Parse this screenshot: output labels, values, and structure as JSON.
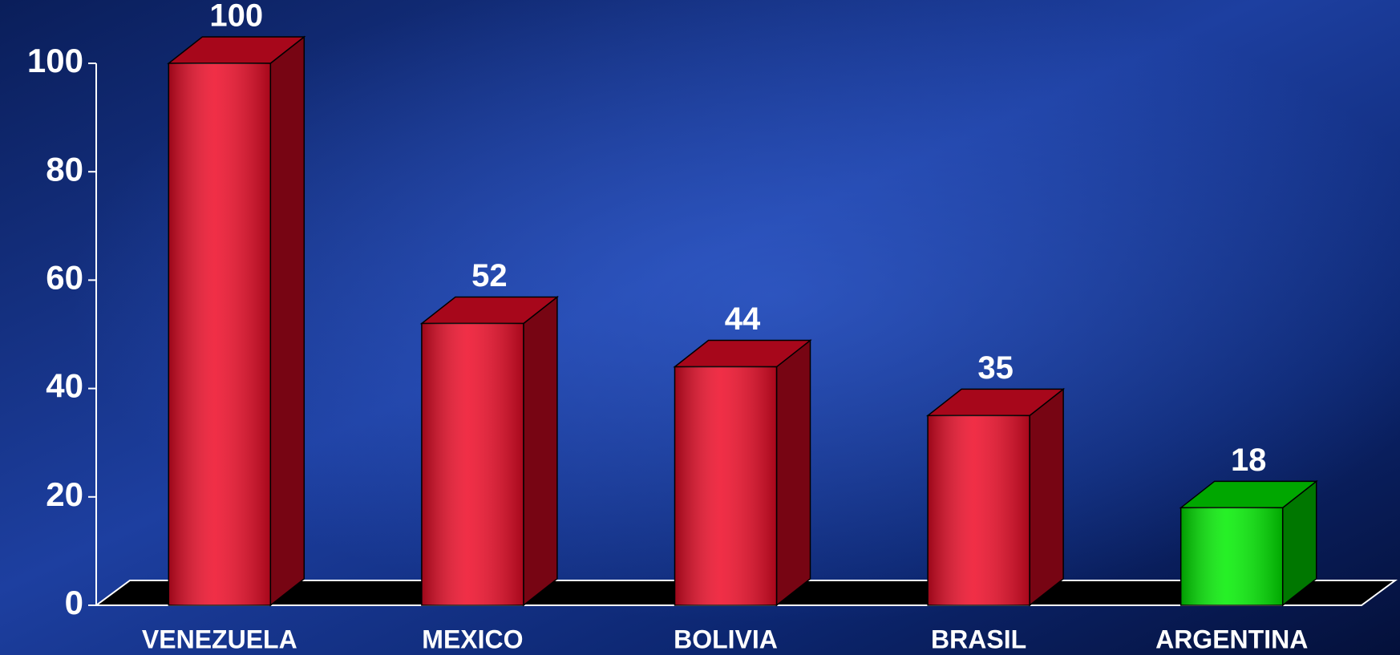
{
  "chart_data": {
    "type": "bar3d",
    "categories": [
      "VENEZUELA",
      "MEXICO",
      "BOLIVIA",
      "BRASIL",
      "ARGENTINA"
    ],
    "values": [
      100,
      52,
      44,
      35,
      18
    ],
    "colors": [
      "#ee0a26",
      "#ee0a26",
      "#ee0a26",
      "#ee0a26",
      "#00ee00"
    ],
    "ylim": [
      0,
      100
    ],
    "yticks": [
      0,
      20,
      40,
      60,
      80,
      100
    ]
  }
}
